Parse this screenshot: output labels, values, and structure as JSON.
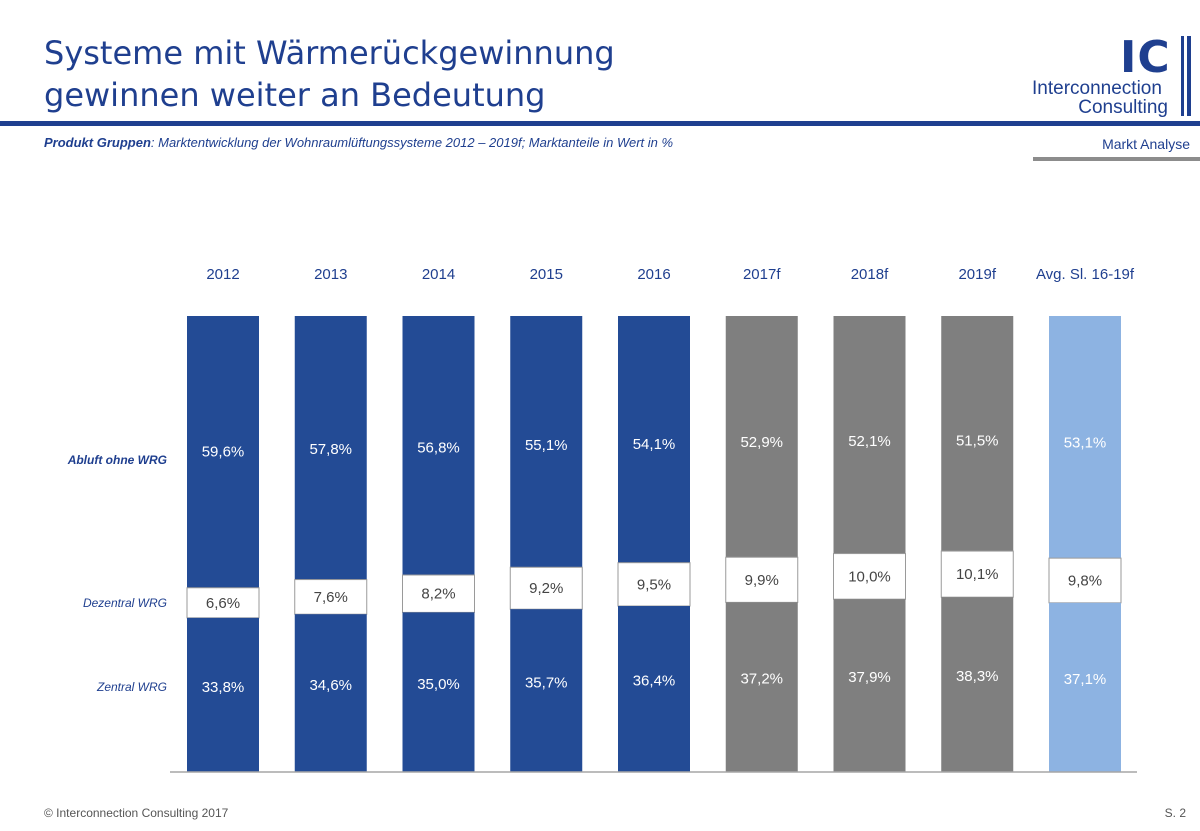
{
  "header": {
    "title_line1": "Systeme mit Wärmerückgewinnung",
    "title_line2": "gewinnen weiter an Bedeutung",
    "subtitle_bold": "Produkt Gruppen",
    "subtitle_rest": ": Marktentwicklung der Wohnraumlüftungssysteme 2012 – 2019f; Marktanteile in Wert in %",
    "section": "Markt Analyse"
  },
  "logo": {
    "mark": "IC",
    "line1": "Interconnection",
    "line2": "Consulting"
  },
  "footer": {
    "copyright": "© Interconnection Consulting 2017",
    "page": "S. 2"
  },
  "colors": {
    "historic": "#234b95",
    "forecast": "#7f7f7f",
    "average": "#8db3e2",
    "middle": "#ffffff",
    "title": "#1f3f8f"
  },
  "chart_data": {
    "type": "bar",
    "stacked": true,
    "percent_stacked": true,
    "categories": [
      "2012",
      "2013",
      "2014",
      "2015",
      "2016",
      "2017f",
      "2018f",
      "2019f",
      "Avg. Sl. 16-19f"
    ],
    "category_group": [
      "historic",
      "historic",
      "historic",
      "historic",
      "historic",
      "forecast",
      "forecast",
      "forecast",
      "average"
    ],
    "series": [
      {
        "name": "Zentral WRG",
        "values": [
          33.8,
          34.6,
          35.0,
          35.7,
          36.4,
          37.2,
          37.9,
          38.3,
          37.1
        ],
        "labels": [
          "33,8%",
          "34,6%",
          "35,0%",
          "35,7%",
          "36,4%",
          "37,2%",
          "37,9%",
          "38,3%",
          "37,1%"
        ]
      },
      {
        "name": "Dezentral WRG",
        "values": [
          6.6,
          7.6,
          8.2,
          9.2,
          9.5,
          9.9,
          10.0,
          10.1,
          9.8
        ],
        "labels": [
          "6,6%",
          "7,6%",
          "8,2%",
          "9,2%",
          "9,5%",
          "9,9%",
          "10,0%",
          "10,1%",
          "9,8%"
        ]
      },
      {
        "name": "Abluft ohne WRG",
        "values": [
          59.6,
          57.8,
          56.8,
          55.1,
          54.1,
          52.9,
          52.1,
          51.5,
          53.1
        ],
        "labels": [
          "59,6%",
          "57,8%",
          "56,8%",
          "55,1%",
          "54,1%",
          "52,9%",
          "52,1%",
          "51,5%",
          "53,1%"
        ]
      }
    ],
    "legend": "left, series names beside stack segments",
    "ylim": [
      0,
      100
    ],
    "grid": false
  }
}
